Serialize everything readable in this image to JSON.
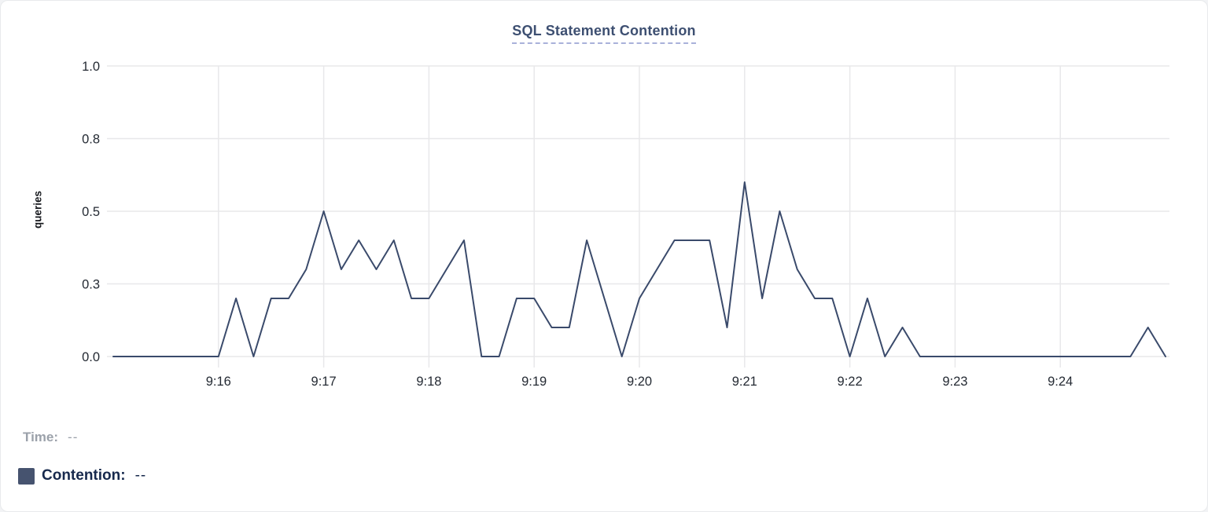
{
  "chart_data": {
    "type": "line",
    "title": "SQL Statement Contention",
    "ylabel": "queries",
    "xlabel": "",
    "ylim": [
      0,
      1
    ],
    "x_range": [
      "9:15:00",
      "9:25:00"
    ],
    "grid": true,
    "y_ticks": [
      {
        "label": "1.0",
        "value": 1
      },
      {
        "label": "0.8",
        "value": 0.75
      },
      {
        "label": "0.5",
        "value": 0.5
      },
      {
        "label": "0.3",
        "value": 0.25
      },
      {
        "label": "0.0",
        "value": 0
      }
    ],
    "x_ticks": [
      {
        "label": "9:16",
        "time": "9:16:00"
      },
      {
        "label": "9:17",
        "time": "9:17:00"
      },
      {
        "label": "9:18",
        "time": "9:18:00"
      },
      {
        "label": "9:19",
        "time": "9:19:00"
      },
      {
        "label": "9:20",
        "time": "9:20:00"
      },
      {
        "label": "9:21",
        "time": "9:21:00"
      },
      {
        "label": "9:22",
        "time": "9:22:00"
      },
      {
        "label": "9:23",
        "time": "9:23:00"
      },
      {
        "label": "9:24",
        "time": "9:24:00"
      }
    ],
    "times": [
      "9:15:00",
      "9:15:10",
      "9:15:20",
      "9:15:30",
      "9:15:40",
      "9:15:50",
      "9:16:00",
      "9:16:10",
      "9:16:20",
      "9:16:30",
      "9:16:40",
      "9:16:50",
      "9:17:00",
      "9:17:10",
      "9:17:20",
      "9:17:30",
      "9:17:40",
      "9:17:50",
      "9:18:00",
      "9:18:10",
      "9:18:20",
      "9:18:30",
      "9:18:40",
      "9:18:50",
      "9:19:00",
      "9:19:10",
      "9:19:20",
      "9:19:30",
      "9:19:40",
      "9:19:50",
      "9:20:00",
      "9:20:10",
      "9:20:20",
      "9:20:30",
      "9:20:40",
      "9:20:50",
      "9:21:00",
      "9:21:10",
      "9:21:20",
      "9:21:30",
      "9:21:40",
      "9:21:50",
      "9:22:00",
      "9:22:10",
      "9:22:20",
      "9:22:30",
      "9:22:40",
      "9:22:50",
      "9:23:00",
      "9:23:10",
      "9:23:20",
      "9:23:30",
      "9:23:40",
      "9:23:50",
      "9:24:00",
      "9:24:10",
      "9:24:20",
      "9:24:30",
      "9:24:40",
      "9:24:50",
      "9:25:00"
    ],
    "series": [
      {
        "name": "Contention",
        "color": "#3a4a6b",
        "values": [
          0,
          0,
          0,
          0,
          0,
          0,
          0,
          0.2,
          0,
          0.2,
          0.2,
          0.3,
          0.5,
          0.3,
          0.4,
          0.3,
          0.4,
          0.2,
          0.2,
          0.3,
          0.4,
          0,
          0,
          0.2,
          0.2,
          0.1,
          0.1,
          0.4,
          0.2,
          0,
          0.2,
          0.3,
          0.4,
          0.4,
          0.4,
          0.1,
          0.6,
          0.2,
          0.5,
          0.3,
          0.2,
          0.2,
          0,
          0.2,
          0,
          0.1,
          0,
          0,
          0,
          0,
          0,
          0,
          0,
          0,
          0,
          0,
          0,
          0,
          0,
          0.1,
          0
        ]
      }
    ],
    "legend_position": "bottom-left"
  },
  "legend": {
    "time_label": "Time:",
    "time_value": "--",
    "contention_label": "Contention:",
    "contention_value": "--",
    "swatch_color": "#46536f"
  },
  "colors": {
    "line": "#3a4a6b",
    "gridline": "#e8e8ea",
    "tick_text": "#242a33",
    "title": "#3d4f71",
    "title_underline": "#a9b1da",
    "legend_muted": "#9ba1aa",
    "legend_dark": "#17294d"
  }
}
